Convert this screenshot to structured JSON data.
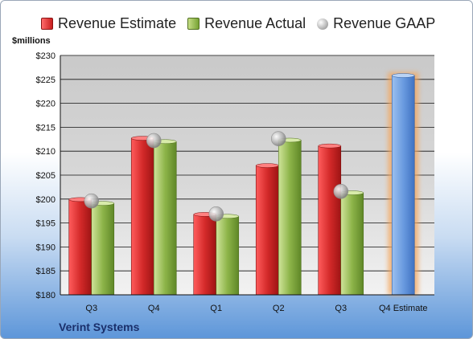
{
  "chart_data": {
    "type": "bar",
    "ylabel": "$millions",
    "ylim": [
      180,
      230
    ],
    "y_ticks": [
      "$180",
      "$185",
      "$190",
      "$195",
      "$200",
      "$205",
      "$210",
      "$215",
      "$220",
      "$225",
      "$230"
    ],
    "categories": [
      "Q3",
      "Q4",
      "Q1",
      "Q2",
      "Q3",
      "Q4 Estimate"
    ],
    "series": [
      {
        "name": "Revenue Estimate",
        "values": [
          199.9,
          212.7,
          196.8,
          207.0,
          211.1,
          null
        ],
        "color": "#c81e1e"
      },
      {
        "name": "Revenue Actual",
        "values": [
          199.1,
          212.0,
          196.4,
          212.3,
          201.3,
          null
        ],
        "color": "#7aa63a"
      },
      {
        "name": "Revenue GAAP",
        "values": [
          199.6,
          212.2,
          196.9,
          212.6,
          201.6,
          null
        ],
        "color": "#a9a9a9"
      }
    ],
    "forecast": {
      "category": "Q4 Estimate",
      "value": 225.8,
      "color": "#5b8fd6",
      "glow": "#f5a65b"
    },
    "grid": true,
    "legend": "top"
  },
  "company": "Verint Systems"
}
